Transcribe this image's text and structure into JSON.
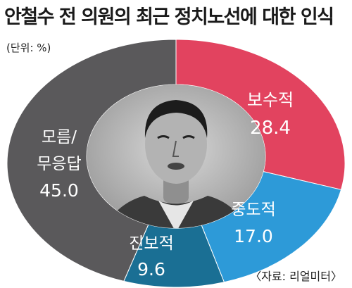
{
  "title": "안철수 전 의원의 최근 정치노선에 대한 인식",
  "unit_note": "(단위: %)",
  "source_note": "〈자료: 리얼미터〉",
  "chart_data": {
    "type": "pie",
    "variant": "donut",
    "categories": [
      "보수적",
      "중도적",
      "진보적",
      "모름/무응답"
    ],
    "values": [
      28.4,
      17.0,
      9.6,
      45.0
    ],
    "value_labels": [
      "28.4",
      "17.0",
      "9.6",
      "45.0"
    ],
    "colors": [
      "#e2435f",
      "#2d9ad8",
      "#1a6f94",
      "#5a595b"
    ],
    "center_image": "photo-of-politician",
    "unit": "%"
  }
}
